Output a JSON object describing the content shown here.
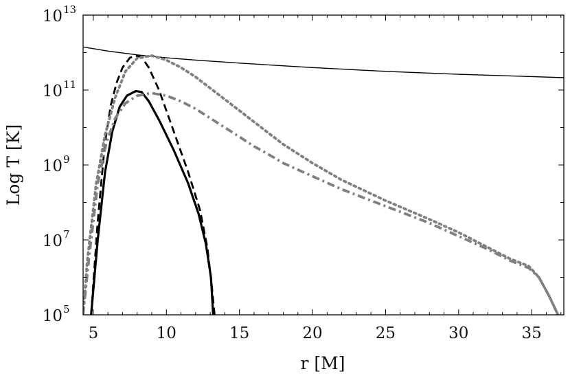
{
  "chart_data": {
    "type": "line",
    "title": "",
    "xlabel": "r [M]",
    "ylabel": "Log T [K]",
    "xlim": [
      4.3,
      37.2
    ],
    "ylim_log10": [
      5,
      13
    ],
    "yscale": "log",
    "grid": false,
    "legend": "none",
    "x_ticks": [
      5,
      10,
      15,
      20,
      25,
      30,
      35
    ],
    "y_ticks": [
      {
        "base": "10",
        "exp": "5"
      },
      {
        "base": "10",
        "exp": "7"
      },
      {
        "base": "10",
        "exp": "9"
      },
      {
        "base": "10",
        "exp": "11"
      },
      {
        "base": "10",
        "exp": "13"
      }
    ],
    "series": [
      {
        "style": "solid-thin",
        "color": "#000000",
        "points": [
          [
            4.3,
            12.15
          ],
          [
            6,
            12.04
          ],
          [
            8,
            11.94
          ],
          [
            10,
            11.86
          ],
          [
            12,
            11.8
          ],
          [
            15,
            11.72
          ],
          [
            20,
            11.6
          ],
          [
            25,
            11.5
          ],
          [
            30,
            11.42
          ],
          [
            35,
            11.36
          ],
          [
            37.2,
            11.33
          ]
        ]
      },
      {
        "style": "dashed",
        "color": "#000000",
        "points": [
          [
            4.85,
            5.0
          ],
          [
            5.3,
            7.5
          ],
          [
            5.8,
            9.6
          ],
          [
            6.2,
            10.6
          ],
          [
            6.6,
            11.2
          ],
          [
            7.0,
            11.6
          ],
          [
            7.5,
            11.86
          ],
          [
            7.9,
            11.92
          ],
          [
            8.3,
            11.88
          ],
          [
            8.8,
            11.6
          ],
          [
            9.5,
            11.0
          ],
          [
            10.5,
            9.9
          ],
          [
            11.5,
            8.8
          ],
          [
            12.3,
            7.8
          ],
          [
            12.8,
            6.8
          ],
          [
            13.1,
            5.8
          ],
          [
            13.3,
            5.0
          ]
        ]
      },
      {
        "style": "solid-thick",
        "color": "#000000",
        "points": [
          [
            4.85,
            5.0
          ],
          [
            5.3,
            7.0
          ],
          [
            5.8,
            8.8
          ],
          [
            6.3,
            9.9
          ],
          [
            6.8,
            10.55
          ],
          [
            7.3,
            10.85
          ],
          [
            7.9,
            10.97
          ],
          [
            8.3,
            10.95
          ],
          [
            8.8,
            10.7
          ],
          [
            9.5,
            10.2
          ],
          [
            10.5,
            9.4
          ],
          [
            11.5,
            8.5
          ],
          [
            12.2,
            7.7
          ],
          [
            12.7,
            6.9
          ],
          [
            13.05,
            6.0
          ],
          [
            13.2,
            5.0
          ]
        ]
      },
      {
        "style": "dotted",
        "color": "#808080",
        "points": [
          [
            4.3,
            5.0
          ],
          [
            4.6,
            6.5
          ],
          [
            5.2,
            8.5
          ],
          [
            5.8,
            9.8
          ],
          [
            6.5,
            10.8
          ],
          [
            7.2,
            11.5
          ],
          [
            8.0,
            11.85
          ],
          [
            9.0,
            11.92
          ],
          [
            10.0,
            11.8
          ],
          [
            11.0,
            11.6
          ],
          [
            12.0,
            11.35
          ],
          [
            13.0,
            11.05
          ],
          [
            14.0,
            10.75
          ],
          [
            15.0,
            10.45
          ],
          [
            16.0,
            10.15
          ],
          [
            17.0,
            9.85
          ],
          [
            18.0,
            9.55
          ],
          [
            20.0,
            9.05
          ],
          [
            22.0,
            8.6
          ],
          [
            25.0,
            8.05
          ],
          [
            28.0,
            7.55
          ],
          [
            30.0,
            7.2
          ],
          [
            32.0,
            6.8
          ],
          [
            33.5,
            6.5
          ],
          [
            34.8,
            6.3
          ],
          [
            35.5,
            6.0
          ],
          [
            36.2,
            5.5
          ],
          [
            36.8,
            5.0
          ]
        ]
      },
      {
        "style": "dash-dot",
        "color": "#808080",
        "points": [
          [
            4.3,
            5.0
          ],
          [
            4.7,
            6.5
          ],
          [
            5.3,
            8.5
          ],
          [
            5.9,
            9.6
          ],
          [
            6.5,
            10.25
          ],
          [
            7.2,
            10.65
          ],
          [
            8.0,
            10.85
          ],
          [
            9.0,
            10.92
          ],
          [
            10.0,
            10.85
          ],
          [
            11.0,
            10.7
          ],
          [
            12.0,
            10.5
          ],
          [
            13.0,
            10.25
          ],
          [
            14.0,
            10.0
          ],
          [
            15.0,
            9.75
          ],
          [
            16.0,
            9.5
          ],
          [
            17.0,
            9.28
          ],
          [
            18.0,
            9.05
          ],
          [
            20.0,
            8.7
          ],
          [
            22.0,
            8.35
          ],
          [
            25.0,
            7.9
          ],
          [
            28.0,
            7.45
          ],
          [
            30.0,
            7.1
          ],
          [
            32.0,
            6.75
          ],
          [
            33.5,
            6.45
          ],
          [
            34.8,
            6.25
          ],
          [
            35.5,
            6.0
          ],
          [
            36.2,
            5.5
          ],
          [
            36.8,
            5.0
          ]
        ]
      }
    ]
  }
}
